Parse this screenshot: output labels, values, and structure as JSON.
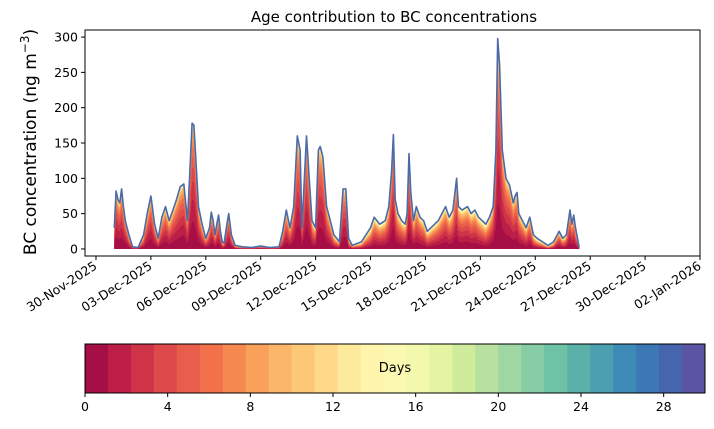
{
  "chart_data": {
    "type": "area",
    "title": "Age contribution to BC concentrations",
    "xlabel": "",
    "ylabel": "BC concentration (ng m",
    "ylabel_superscript": "−3",
    "ylabel_close": ")",
    "ylim": [
      -10,
      310
    ],
    "yticks": [
      0,
      50,
      100,
      150,
      200,
      250,
      300
    ],
    "xlim_days": [
      -0.6,
      33.0
    ],
    "x_start_label": "30-Nov-2025",
    "xticks": [
      {
        "day": 0,
        "label": "30-Nov-2025"
      },
      {
        "day": 3,
        "label": "03-Dec-2025"
      },
      {
        "day": 6,
        "label": "06-Dec-2025"
      },
      {
        "day": 9,
        "label": "09-Dec-2025"
      },
      {
        "day": 12,
        "label": "12-Dec-2025"
      },
      {
        "day": 15,
        "label": "15-Dec-2025"
      },
      {
        "day": 18,
        "label": "18-Dec-2025"
      },
      {
        "day": 21,
        "label": "21-Dec-2025"
      },
      {
        "day": 24,
        "label": "24-Dec-2025"
      },
      {
        "day": 27,
        "label": "27-Dec-2025"
      },
      {
        "day": 30,
        "label": "30-Dec-2025"
      },
      {
        "day": 33,
        "label": "02-Jan-2026"
      }
    ],
    "total_line_color": "#4a6aa8",
    "total_series": [
      [
        1.0,
        30
      ],
      [
        1.1,
        82
      ],
      [
        1.2,
        70
      ],
      [
        1.3,
        65
      ],
      [
        1.4,
        85
      ],
      [
        1.5,
        60
      ],
      [
        1.6,
        40
      ],
      [
        1.8,
        20
      ],
      [
        2.0,
        3
      ],
      [
        2.3,
        2
      ],
      [
        2.6,
        20
      ],
      [
        2.8,
        50
      ],
      [
        3.0,
        75
      ],
      [
        3.2,
        35
      ],
      [
        3.4,
        15
      ],
      [
        3.6,
        45
      ],
      [
        3.8,
        60
      ],
      [
        4.0,
        40
      ],
      [
        4.2,
        55
      ],
      [
        4.4,
        70
      ],
      [
        4.6,
        88
      ],
      [
        4.8,
        92
      ],
      [
        5.0,
        40
      ],
      [
        5.15,
        120
      ],
      [
        5.25,
        178
      ],
      [
        5.35,
        175
      ],
      [
        5.45,
        130
      ],
      [
        5.6,
        60
      ],
      [
        5.8,
        35
      ],
      [
        6.0,
        15
      ],
      [
        6.2,
        30
      ],
      [
        6.3,
        52
      ],
      [
        6.4,
        40
      ],
      [
        6.5,
        20
      ],
      [
        6.6,
        35
      ],
      [
        6.7,
        48
      ],
      [
        6.8,
        25
      ],
      [
        6.9,
        10
      ],
      [
        7.0,
        8
      ],
      [
        7.15,
        35
      ],
      [
        7.25,
        50
      ],
      [
        7.4,
        20
      ],
      [
        7.6,
        5
      ],
      [
        8.0,
        3
      ],
      [
        8.5,
        2
      ],
      [
        9.0,
        4
      ],
      [
        9.5,
        2
      ],
      [
        10.0,
        3
      ],
      [
        10.2,
        25
      ],
      [
        10.4,
        55
      ],
      [
        10.6,
        30
      ],
      [
        10.8,
        60
      ],
      [
        11.0,
        160
      ],
      [
        11.15,
        140
      ],
      [
        11.25,
        30
      ],
      [
        11.35,
        80
      ],
      [
        11.5,
        160
      ],
      [
        11.65,
        100
      ],
      [
        11.8,
        40
      ],
      [
        12.0,
        30
      ],
      [
        12.15,
        140
      ],
      [
        12.25,
        145
      ],
      [
        12.4,
        130
      ],
      [
        12.6,
        60
      ],
      [
        12.8,
        40
      ],
      [
        13.0,
        20
      ],
      [
        13.3,
        10
      ],
      [
        13.5,
        85
      ],
      [
        13.65,
        85
      ],
      [
        13.8,
        15
      ],
      [
        14.0,
        5
      ],
      [
        14.5,
        10
      ],
      [
        15.0,
        30
      ],
      [
        15.2,
        45
      ],
      [
        15.5,
        35
      ],
      [
        15.8,
        40
      ],
      [
        16.0,
        60
      ],
      [
        16.15,
        110
      ],
      [
        16.25,
        162
      ],
      [
        16.35,
        70
      ],
      [
        16.5,
        50
      ],
      [
        16.7,
        40
      ],
      [
        16.9,
        35
      ],
      [
        17.0,
        50
      ],
      [
        17.1,
        135
      ],
      [
        17.2,
        80
      ],
      [
        17.35,
        40
      ],
      [
        17.5,
        60
      ],
      [
        17.7,
        45
      ],
      [
        17.9,
        40
      ],
      [
        18.1,
        25
      ],
      [
        18.3,
        30
      ],
      [
        18.5,
        35
      ],
      [
        18.7,
        40
      ],
      [
        18.9,
        50
      ],
      [
        19.1,
        60
      ],
      [
        19.3,
        45
      ],
      [
        19.5,
        55
      ],
      [
        19.7,
        100
      ],
      [
        19.8,
        60
      ],
      [
        20.0,
        55
      ],
      [
        20.3,
        60
      ],
      [
        20.5,
        50
      ],
      [
        20.7,
        55
      ],
      [
        20.9,
        45
      ],
      [
        21.1,
        40
      ],
      [
        21.3,
        35
      ],
      [
        21.5,
        45
      ],
      [
        21.7,
        60
      ],
      [
        21.85,
        140
      ],
      [
        21.95,
        298
      ],
      [
        22.05,
        260
      ],
      [
        22.2,
        140
      ],
      [
        22.4,
        100
      ],
      [
        22.6,
        90
      ],
      [
        22.8,
        65
      ],
      [
        22.9,
        75
      ],
      [
        23.0,
        80
      ],
      [
        23.1,
        50
      ],
      [
        23.3,
        40
      ],
      [
        23.5,
        30
      ],
      [
        23.7,
        45
      ],
      [
        23.9,
        20
      ],
      [
        24.1,
        15
      ],
      [
        24.4,
        10
      ],
      [
        24.7,
        5
      ],
      [
        25.0,
        10
      ],
      [
        25.3,
        25
      ],
      [
        25.5,
        15
      ],
      [
        25.7,
        20
      ],
      [
        25.9,
        55
      ],
      [
        26.0,
        35
      ],
      [
        26.1,
        48
      ],
      [
        26.2,
        30
      ],
      [
        26.4,
        2
      ]
    ],
    "days_series": [
      [
        1.0,
        28
      ],
      [
        1.1,
        75
      ],
      [
        1.2,
        60
      ],
      [
        1.3,
        55
      ],
      [
        1.4,
        70
      ],
      [
        1.5,
        50
      ],
      [
        1.6,
        35
      ],
      [
        1.8,
        10
      ],
      [
        2.0,
        1
      ],
      [
        2.3,
        1
      ],
      [
        2.6,
        10
      ],
      [
        2.8,
        35
      ],
      [
        3.0,
        60
      ],
      [
        3.2,
        25
      ],
      [
        3.4,
        8
      ],
      [
        3.6,
        30
      ],
      [
        3.8,
        45
      ],
      [
        4.0,
        25
      ],
      [
        4.2,
        40
      ],
      [
        4.4,
        55
      ],
      [
        4.6,
        70
      ],
      [
        4.8,
        80
      ],
      [
        5.0,
        30
      ],
      [
        5.15,
        105
      ],
      [
        5.25,
        165
      ],
      [
        5.35,
        160
      ],
      [
        5.45,
        115
      ],
      [
        5.6,
        45
      ],
      [
        5.8,
        20
      ],
      [
        6.0,
        8
      ],
      [
        6.2,
        20
      ],
      [
        6.3,
        40
      ],
      [
        6.4,
        30
      ],
      [
        6.5,
        10
      ],
      [
        6.6,
        25
      ],
      [
        6.7,
        35
      ],
      [
        6.8,
        15
      ],
      [
        6.9,
        5
      ],
      [
        7.0,
        4
      ],
      [
        7.15,
        25
      ],
      [
        7.25,
        40
      ],
      [
        7.4,
        12
      ],
      [
        7.6,
        2
      ],
      [
        8.0,
        1
      ],
      [
        8.5,
        1
      ],
      [
        9.0,
        2
      ],
      [
        9.5,
        1
      ],
      [
        10.0,
        1
      ],
      [
        10.2,
        12
      ],
      [
        10.4,
        40
      ],
      [
        10.6,
        18
      ],
      [
        10.8,
        45
      ],
      [
        11.0,
        140
      ],
      [
        11.15,
        120
      ],
      [
        11.25,
        18
      ],
      [
        11.35,
        60
      ],
      [
        11.5,
        140
      ],
      [
        11.65,
        80
      ],
      [
        11.8,
        25
      ],
      [
        12.0,
        15
      ],
      [
        12.15,
        120
      ],
      [
        12.25,
        130
      ],
      [
        12.4,
        115
      ],
      [
        12.6,
        45
      ],
      [
        12.8,
        25
      ],
      [
        13.0,
        8
      ],
      [
        13.3,
        4
      ],
      [
        13.5,
        70
      ],
      [
        13.65,
        72
      ],
      [
        13.8,
        6
      ],
      [
        14.0,
        2
      ],
      [
        14.5,
        3
      ],
      [
        15.0,
        12
      ],
      [
        15.2,
        25
      ],
      [
        15.5,
        18
      ],
      [
        15.8,
        22
      ],
      [
        16.0,
        40
      ],
      [
        16.15,
        90
      ],
      [
        16.25,
        140
      ],
      [
        16.35,
        50
      ],
      [
        16.5,
        30
      ],
      [
        16.7,
        22
      ],
      [
        16.9,
        18
      ],
      [
        17.0,
        30
      ],
      [
        17.1,
        115
      ],
      [
        17.2,
        60
      ],
      [
        17.35,
        22
      ],
      [
        17.5,
        40
      ],
      [
        17.7,
        28
      ],
      [
        17.9,
        22
      ],
      [
        18.1,
        10
      ],
      [
        18.3,
        14
      ],
      [
        18.5,
        18
      ],
      [
        18.7,
        22
      ],
      [
        18.9,
        30
      ],
      [
        19.1,
        40
      ],
      [
        19.3,
        25
      ],
      [
        19.5,
        35
      ],
      [
        19.7,
        80
      ],
      [
        19.8,
        40
      ],
      [
        20.0,
        35
      ],
      [
        20.3,
        40
      ],
      [
        20.5,
        30
      ],
      [
        20.7,
        35
      ],
      [
        20.9,
        25
      ],
      [
        21.1,
        20
      ],
      [
        21.3,
        15
      ],
      [
        21.5,
        25
      ],
      [
        21.7,
        45
      ],
      [
        21.85,
        125
      ],
      [
        21.95,
        280
      ],
      [
        22.05,
        240
      ],
      [
        22.2,
        120
      ],
      [
        22.4,
        85
      ],
      [
        22.6,
        75
      ],
      [
        22.8,
        50
      ],
      [
        22.9,
        58
      ],
      [
        23.0,
        62
      ],
      [
        23.1,
        35
      ],
      [
        23.3,
        25
      ],
      [
        23.5,
        15
      ],
      [
        23.7,
        28
      ],
      [
        23.9,
        8
      ],
      [
        24.1,
        5
      ],
      [
        24.4,
        3
      ],
      [
        24.7,
        1
      ],
      [
        25.0,
        3
      ],
      [
        25.3,
        15
      ],
      [
        25.5,
        6
      ],
      [
        25.7,
        10
      ],
      [
        25.9,
        40
      ],
      [
        26.0,
        22
      ],
      [
        26.1,
        32
      ],
      [
        26.2,
        15
      ],
      [
        26.4,
        1
      ]
    ],
    "colorbar": {
      "label": "Days",
      "vmin": 0,
      "vmax": 30,
      "ticks": [
        0,
        4,
        8,
        12,
        16,
        20,
        24,
        28
      ],
      "colors": [
        "#a50f45",
        "#bc1e47",
        "#cf3348",
        "#de4a4c",
        "#e85d4b",
        "#f2714b",
        "#f68950",
        "#f9a05b",
        "#fbb66a",
        "#fdc979",
        "#fed98a",
        "#feea9c",
        "#fff5ac",
        "#fbf9b1",
        "#f2f9ad",
        "#e5f4a3",
        "#cfeb9c",
        "#b8e19f",
        "#9fd6a3",
        "#86cda5",
        "#6ec2a5",
        "#5bb1a8",
        "#4a9fb1",
        "#3f8bb8",
        "#3b78b4",
        "#4665ad",
        "#5b53a4"
      ]
    }
  }
}
